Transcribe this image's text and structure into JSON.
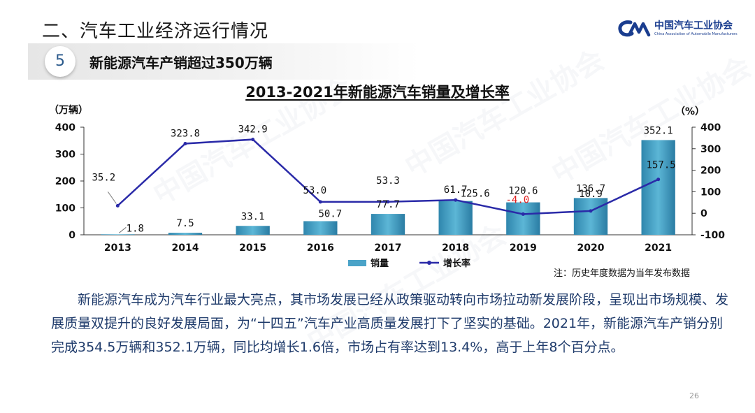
{
  "header": {
    "section_title": "二、汽车工业经济运行情况",
    "logo_cn": "中国汽车工业协会",
    "logo_en": "China Association of Automobile Manufacturers",
    "sub_number": "5",
    "sub_title": "新能源汽车产销超过350万辆"
  },
  "chart_data": {
    "type": "bar",
    "title": "2013-2021年新能源汽车销量及增长率",
    "categories": [
      "2013",
      "2014",
      "2015",
      "2016",
      "2017",
      "2018",
      "2019",
      "2020",
      "2021"
    ],
    "series": [
      {
        "name": "销量",
        "type": "bar",
        "axis": "left",
        "values": [
          1.8,
          7.5,
          33.1,
          50.7,
          77.7,
          125.6,
          120.6,
          136.7,
          352.1
        ],
        "color": "#4aa3c8"
      },
      {
        "name": "增长率",
        "type": "line",
        "axis": "right",
        "values": [
          35.2,
          323.8,
          342.9,
          53.0,
          53.3,
          61.7,
          -4.0,
          10.9,
          157.5
        ],
        "color": "#2a2aa8"
      }
    ],
    "bar_labels": [
      "1.8",
      "7.5",
      "33.1",
      "50.7",
      "77.7",
      "125.6",
      "120.6",
      "136.7",
      "352.1"
    ],
    "line_labels": [
      "35.2",
      "323.8",
      "342.9",
      "53.0",
      "53.3",
      "61.7",
      "-4.0",
      "10.9",
      "157.5"
    ],
    "left_axis": {
      "unit": "（万辆）",
      "ylim": [
        0,
        400
      ],
      "ticks": [
        "0",
        "100",
        "200",
        "300",
        "400"
      ]
    },
    "right_axis": {
      "unit": "（%）",
      "ylim": [
        -100,
        400
      ],
      "ticks": [
        "-100",
        "0",
        "100",
        "200",
        "300",
        "400"
      ]
    },
    "legend_position": "bottom",
    "grid": false,
    "negative_label_color": "#e02020"
  },
  "note": "注：历史年度数据为当年发布数据",
  "paragraph": "新能源汽车成为汽车行业最大亮点，其市场发展已经从政策驱动转向市场拉动新发展阶段，呈现出市场规模、发展质量双提升的良好发展局面，为“十四五”汽车产业高质量发展打下了坚实的基础。2021年，新能源汽车产销分别完成354.5万辆和352.1万辆，同比均增长1.6倍，市场占有率达到13.4%，高于上年8个百分点。",
  "page_number": "26",
  "watermark_text": "中国汽车工业协会"
}
